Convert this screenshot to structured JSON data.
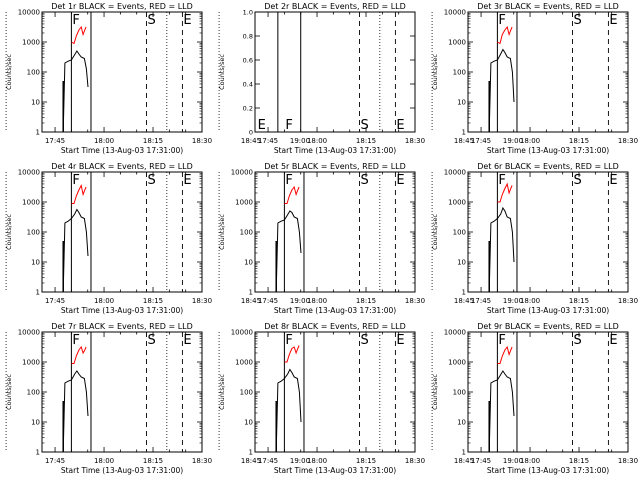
{
  "figure": {
    "y_label": "Counts/sec",
    "x_label": "Start Time (13-Aug-03 17:31:00)",
    "series_colors": {
      "events": "#000000",
      "lld": "#ff0000"
    },
    "x_ticks": [
      "17:45",
      "18:00",
      "18:15",
      "18:30",
      "18:45",
      "19:00"
    ],
    "x_range_min": [
      41,
      90
    ],
    "log_ticks": [
      "1",
      "10",
      "100",
      "1000",
      "10000"
    ],
    "log_exponents": [
      0,
      1,
      2,
      3,
      4
    ],
    "linear_ticks": [
      "1.0",
      "0.8",
      "0.6",
      "0.4",
      "0.2",
      "0"
    ]
  },
  "chart_data": [
    {
      "id": "det-1r",
      "title": "Det 1r BLACK = Events, RED = LLD",
      "type": "line",
      "yscale": "log",
      "ylim": [
        1,
        10000
      ],
      "dotted_lines": [
        14,
        30
      ],
      "solid_lines": [
        50,
        56
      ],
      "dashed_lines": [
        73,
        84
      ],
      "markers": [
        {
          "label": "F",
          "x": 50
        },
        {
          "label": "S",
          "x": 73
        },
        {
          "label": "E",
          "x": 84
        }
      ],
      "events": [
        [
          47.5,
          0
        ],
        [
          48,
          2.3
        ],
        [
          49,
          2.36
        ],
        [
          50,
          2.4
        ],
        [
          51,
          2.58
        ],
        [
          51.7,
          2.7
        ],
        [
          52.3,
          2.6
        ],
        [
          53,
          2.5
        ],
        [
          54,
          2.45
        ],
        [
          54.6,
          2.1
        ],
        [
          55.1,
          1.5
        ]
      ],
      "lld": [
        [
          50,
          3.0
        ],
        [
          50.8,
          2.95
        ],
        [
          51.5,
          3.2
        ],
        [
          52.3,
          3.4
        ],
        [
          53,
          3.5
        ],
        [
          53.6,
          3.25
        ],
        [
          54.1,
          3.4
        ],
        [
          54.5,
          3.5
        ]
      ],
      "start_spike": {
        "x": 47.5,
        "top": 1.7
      }
    },
    {
      "id": "det-2r",
      "title": "Det 2r BLACK = Events, RED = LLD",
      "type": "line",
      "yscale": "linear",
      "ylim": [
        0,
        1
      ],
      "dotted_lines": [
        14,
        30
      ],
      "solid_lines": [
        48,
        55
      ],
      "dashed_lines": [
        73,
        84
      ],
      "markers": [
        {
          "label": "E",
          "x": 41.5
        },
        {
          "label": "F",
          "x": 50
        },
        {
          "label": "S",
          "x": 73
        },
        {
          "label": "E",
          "x": 84
        }
      ],
      "events": [],
      "lld": [],
      "start_spike": null
    },
    {
      "id": "det-3r",
      "title": "Det 3r BLACK = Events, RED = LLD",
      "type": "line",
      "yscale": "log",
      "ylim": [
        1,
        10000
      ],
      "dotted_lines": [
        14,
        30
      ],
      "solid_lines": [
        50,
        56
      ],
      "dashed_lines": [
        73,
        84
      ],
      "markers": [
        {
          "label": "F",
          "x": 50
        },
        {
          "label": "S",
          "x": 73
        },
        {
          "label": "E",
          "x": 84
        }
      ],
      "events": [
        [
          47.5,
          0
        ],
        [
          48,
          2.3
        ],
        [
          49,
          2.36
        ],
        [
          50,
          2.4
        ],
        [
          51,
          2.6
        ],
        [
          51.7,
          2.75
        ],
        [
          52.3,
          2.65
        ],
        [
          53,
          2.5
        ],
        [
          54,
          2.45
        ],
        [
          54.6,
          2.0
        ],
        [
          55.1,
          1.0
        ]
      ],
      "lld": [
        [
          50,
          3.0
        ],
        [
          50.8,
          2.95
        ],
        [
          51.5,
          3.25
        ],
        [
          52.3,
          3.4
        ],
        [
          53,
          3.5
        ],
        [
          53.6,
          3.25
        ],
        [
          54.1,
          3.4
        ],
        [
          54.5,
          3.5
        ]
      ],
      "start_spike": {
        "x": 47.5,
        "top": 1.7
      }
    },
    {
      "id": "det-4r",
      "title": "Det 4r BLACK = Events, RED = LLD",
      "type": "line",
      "yscale": "log",
      "ylim": [
        1,
        10000
      ],
      "dotted_lines": [
        14,
        30
      ],
      "solid_lines": [
        50,
        56
      ],
      "dashed_lines": [
        73,
        84
      ],
      "markers": [
        {
          "label": "F",
          "x": 50
        },
        {
          "label": "S",
          "x": 73
        },
        {
          "label": "E",
          "x": 84
        }
      ],
      "events": [
        [
          47.5,
          0
        ],
        [
          48,
          2.3
        ],
        [
          49,
          2.36
        ],
        [
          50,
          2.45
        ],
        [
          51,
          2.6
        ],
        [
          51.7,
          2.75
        ],
        [
          52.3,
          2.65
        ],
        [
          53,
          2.5
        ],
        [
          54,
          2.45
        ],
        [
          54.6,
          2.0
        ],
        [
          55.1,
          1.2
        ]
      ],
      "lld": [
        [
          50,
          2.95
        ],
        [
          50.8,
          2.95
        ],
        [
          51.5,
          3.2
        ],
        [
          52.3,
          3.4
        ],
        [
          53,
          3.55
        ],
        [
          53.6,
          3.25
        ],
        [
          54.1,
          3.4
        ],
        [
          54.5,
          3.5
        ]
      ],
      "start_spike": {
        "x": 47.5,
        "top": 1.7
      }
    },
    {
      "id": "det-5r",
      "title": "Det 5r BLACK = Events, RED = LLD",
      "type": "line",
      "yscale": "log",
      "ylim": [
        1,
        10000
      ],
      "dotted_lines": [
        14,
        30
      ],
      "solid_lines": [
        50,
        56
      ],
      "dashed_lines": [
        73,
        84
      ],
      "markers": [
        {
          "label": "F",
          "x": 50
        },
        {
          "label": "S",
          "x": 73
        },
        {
          "label": "E",
          "x": 84
        }
      ],
      "events": [
        [
          47.5,
          0
        ],
        [
          48,
          2.3
        ],
        [
          49,
          2.36
        ],
        [
          50,
          2.4
        ],
        [
          51,
          2.58
        ],
        [
          51.7,
          2.7
        ],
        [
          52.3,
          2.65
        ],
        [
          53,
          2.5
        ],
        [
          54,
          2.45
        ],
        [
          54.6,
          2.0
        ],
        [
          55.1,
          1.3
        ]
      ],
      "lld": [
        [
          50,
          2.95
        ],
        [
          50.8,
          2.95
        ],
        [
          51.5,
          3.2
        ],
        [
          52.3,
          3.4
        ],
        [
          53,
          3.5
        ],
        [
          53.6,
          3.25
        ],
        [
          54.1,
          3.4
        ],
        [
          54.5,
          3.5
        ]
      ],
      "start_spike": {
        "x": 47.5,
        "top": 1.7
      }
    },
    {
      "id": "det-6r",
      "title": "Det 6r BLACK = Events, RED = LLD",
      "type": "line",
      "yscale": "log",
      "ylim": [
        1,
        10000
      ],
      "dotted_lines": [
        14,
        30
      ],
      "solid_lines": [
        50,
        56
      ],
      "dashed_lines": [
        73,
        84
      ],
      "markers": [
        {
          "label": "F",
          "x": 50
        },
        {
          "label": "S",
          "x": 73
        },
        {
          "label": "E",
          "x": 84
        }
      ],
      "events": [
        [
          47.5,
          0
        ],
        [
          48,
          2.3
        ],
        [
          49,
          2.36
        ],
        [
          50,
          2.45
        ],
        [
          51,
          2.6
        ],
        [
          51.7,
          2.8
        ],
        [
          52.3,
          2.7
        ],
        [
          53,
          2.5
        ],
        [
          54,
          2.45
        ],
        [
          54.6,
          2.0
        ],
        [
          55.1,
          1.0
        ]
      ],
      "lld": [
        [
          50,
          3.0
        ],
        [
          50.8,
          3.0
        ],
        [
          51.5,
          3.25
        ],
        [
          52.3,
          3.45
        ],
        [
          53,
          3.6
        ],
        [
          53.6,
          3.3
        ],
        [
          54.1,
          3.45
        ],
        [
          54.5,
          3.55
        ]
      ],
      "start_spike": {
        "x": 47.5,
        "top": 1.7
      }
    },
    {
      "id": "det-7r",
      "title": "Det 7r BLACK = Events, RED = LLD",
      "type": "line",
      "yscale": "log",
      "ylim": [
        1,
        10000
      ],
      "dotted_lines": [
        14,
        30
      ],
      "solid_lines": [
        50,
        56
      ],
      "dashed_lines": [
        73,
        84
      ],
      "markers": [
        {
          "label": "F",
          "x": 50
        },
        {
          "label": "S",
          "x": 73
        },
        {
          "label": "E",
          "x": 84
        }
      ],
      "events": [
        [
          47.5,
          0
        ],
        [
          48,
          2.3
        ],
        [
          49,
          2.36
        ],
        [
          50,
          2.4
        ],
        [
          51,
          2.6
        ],
        [
          51.7,
          2.7
        ],
        [
          52.3,
          2.6
        ],
        [
          53,
          2.5
        ],
        [
          54,
          2.45
        ],
        [
          54.6,
          2.0
        ],
        [
          55.1,
          1.2
        ]
      ],
      "lld": [
        [
          50,
          2.95
        ],
        [
          50.8,
          2.95
        ],
        [
          51.5,
          3.2
        ],
        [
          52.3,
          3.4
        ],
        [
          53,
          3.5
        ],
        [
          53.6,
          3.3
        ],
        [
          54.1,
          3.4
        ],
        [
          54.5,
          3.5
        ]
      ],
      "start_spike": {
        "x": 47.5,
        "top": 1.7
      }
    },
    {
      "id": "det-8r",
      "title": "Det 8r BLACK = Events, RED = LLD",
      "type": "line",
      "yscale": "log",
      "ylim": [
        1,
        10000
      ],
      "dotted_lines": [
        14,
        30
      ],
      "solid_lines": [
        50,
        56
      ],
      "dashed_lines": [
        73,
        84
      ],
      "markers": [
        {
          "label": "F",
          "x": 50
        },
        {
          "label": "S",
          "x": 73
        },
        {
          "label": "E",
          "x": 84
        }
      ],
      "events": [
        [
          47.5,
          0
        ],
        [
          48,
          2.3
        ],
        [
          49,
          2.36
        ],
        [
          50,
          2.45
        ],
        [
          51,
          2.6
        ],
        [
          51.7,
          2.75
        ],
        [
          52.3,
          2.65
        ],
        [
          53,
          2.5
        ],
        [
          54,
          2.45
        ],
        [
          54.6,
          2.0
        ],
        [
          55.1,
          1.0
        ]
      ],
      "lld": [
        [
          50,
          3.0
        ],
        [
          50.8,
          3.0
        ],
        [
          51.5,
          3.25
        ],
        [
          52.3,
          3.45
        ],
        [
          53,
          3.5
        ],
        [
          53.6,
          3.3
        ],
        [
          54.1,
          3.45
        ],
        [
          54.5,
          3.55
        ]
      ],
      "start_spike": {
        "x": 47.5,
        "top": 1.7
      }
    },
    {
      "id": "det-9r",
      "title": "Det 9r BLACK = Events, RED = LLD",
      "type": "line",
      "yscale": "log",
      "ylim": [
        1,
        10000
      ],
      "dotted_lines": [
        14,
        30
      ],
      "solid_lines": [
        50,
        56
      ],
      "dashed_lines": [
        73,
        84
      ],
      "markers": [
        {
          "label": "F",
          "x": 50
        },
        {
          "label": "S",
          "x": 73
        },
        {
          "label": "E",
          "x": 84
        }
      ],
      "events": [
        [
          47.5,
          0
        ],
        [
          48,
          2.3
        ],
        [
          49,
          2.36
        ],
        [
          50,
          2.4
        ],
        [
          51,
          2.58
        ],
        [
          51.7,
          2.7
        ],
        [
          52.3,
          2.6
        ],
        [
          53,
          2.5
        ],
        [
          54,
          2.45
        ],
        [
          54.6,
          2.0
        ],
        [
          55.1,
          1.2
        ]
      ],
      "lld": [
        [
          50,
          2.95
        ],
        [
          50.8,
          2.95
        ],
        [
          51.5,
          3.2
        ],
        [
          52.3,
          3.4
        ],
        [
          53,
          3.5
        ],
        [
          53.6,
          3.25
        ],
        [
          54.1,
          3.4
        ],
        [
          54.5,
          3.5
        ]
      ],
      "start_spike": {
        "x": 47.5,
        "top": 1.7
      }
    }
  ]
}
